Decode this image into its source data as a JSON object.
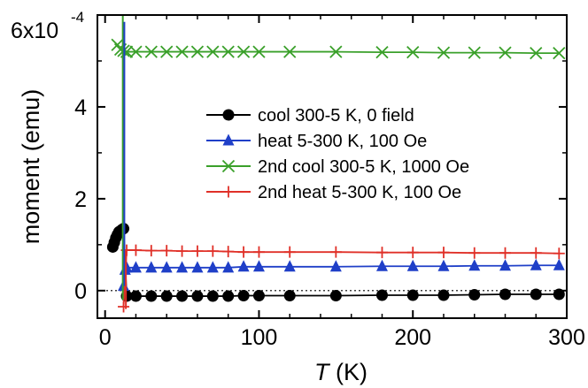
{
  "chart_data": {
    "type": "scatter",
    "xlabel": "T",
    "xunit": "(K)",
    "ylabel": "moment (emu)",
    "y_scale_label": "6x10",
    "y_scale_exponent": "-4",
    "xlim": [
      -5,
      300
    ],
    "ylim": [
      -0.6,
      6.0
    ],
    "x_ticks": [
      "0",
      "100",
      "200",
      "300"
    ],
    "y_ticks": [
      "0",
      "2",
      "4"
    ],
    "grid": false,
    "zero_reference_line": true,
    "legend_position": "center-right",
    "series": [
      {
        "name": "cool 300-5 K, 0 field",
        "color": "#000000",
        "marker": "circle",
        "x": [
          5,
          6,
          7,
          8,
          9,
          10,
          11,
          12,
          14,
          20,
          30,
          40,
          50,
          60,
          70,
          80,
          90,
          100,
          120,
          150,
          180,
          200,
          220,
          240,
          260,
          280,
          295
        ],
        "y": [
          0.95,
          1.05,
          1.15,
          1.22,
          1.28,
          1.3,
          1.33,
          1.35,
          -0.12,
          -0.12,
          -0.12,
          -0.12,
          -0.12,
          -0.12,
          -0.12,
          -0.12,
          -0.11,
          -0.11,
          -0.11,
          -0.11,
          -0.1,
          -0.1,
          -0.1,
          -0.09,
          -0.08,
          -0.08,
          -0.08
        ]
      },
      {
        "name": "heat 5-300 K, 100 Oe",
        "color": "#1f3fc8",
        "marker": "triangle",
        "x": [
          12,
          13,
          14,
          20,
          30,
          40,
          50,
          60,
          70,
          80,
          90,
          100,
          120,
          150,
          180,
          200,
          220,
          240,
          260,
          280,
          295
        ],
        "y": [
          0.1,
          0.45,
          0.5,
          0.5,
          0.5,
          0.5,
          0.5,
          0.5,
          0.5,
          0.5,
          0.52,
          0.52,
          0.52,
          0.52,
          0.53,
          0.53,
          0.53,
          0.54,
          0.54,
          0.55,
          0.55
        ]
      },
      {
        "name": "2nd cool 300-5 K, 1000 Oe",
        "color": "#3aa02a",
        "marker": "x",
        "x": [
          8,
          10,
          12,
          14,
          20,
          30,
          40,
          50,
          60,
          70,
          80,
          90,
          100,
          120,
          150,
          180,
          200,
          220,
          240,
          260,
          280,
          295
        ],
        "y": [
          5.35,
          5.25,
          5.22,
          5.2,
          5.2,
          5.2,
          5.2,
          5.2,
          5.2,
          5.2,
          5.2,
          5.2,
          5.2,
          5.2,
          5.2,
          5.19,
          5.19,
          5.18,
          5.18,
          5.18,
          5.17,
          5.17
        ]
      },
      {
        "name": "2nd heat 5-300 K, 100 Oe",
        "color": "#e03028",
        "marker": "plus",
        "x": [
          12,
          14,
          20,
          30,
          40,
          50,
          60,
          70,
          80,
          90,
          100,
          120,
          150,
          180,
          200,
          220,
          240,
          260,
          280,
          295
        ],
        "y": [
          -0.35,
          0.88,
          0.88,
          0.87,
          0.87,
          0.86,
          0.86,
          0.86,
          0.85,
          0.84,
          0.84,
          0.84,
          0.84,
          0.83,
          0.83,
          0.83,
          0.82,
          0.82,
          0.82,
          0.81
        ]
      }
    ]
  }
}
